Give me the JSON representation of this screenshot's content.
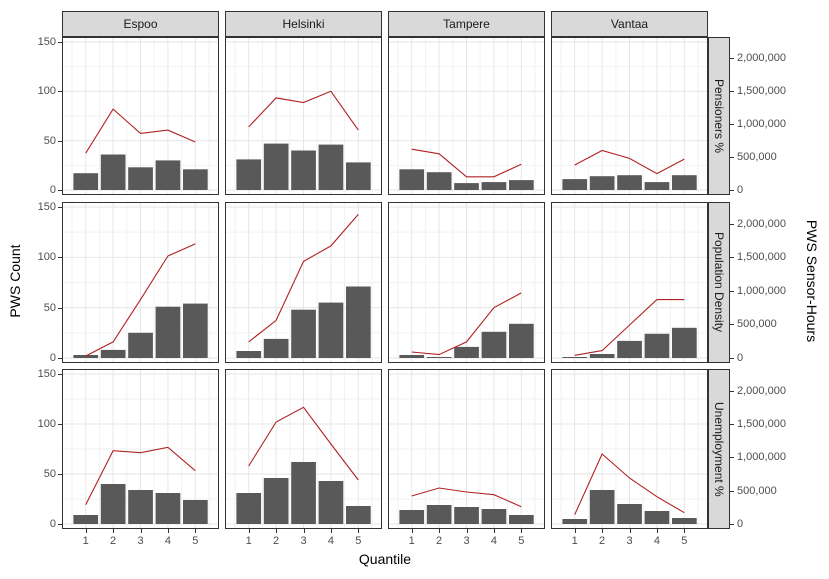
{
  "chart_data": {
    "type": "bar+line faceted grid",
    "title": "",
    "xlabel": "Quantile",
    "ylabel_left": "PWS Count",
    "ylabel_right": "PWS Sensor-Hours",
    "facet_columns": [
      "Espoo",
      "Helsinki",
      "Tampere",
      "Vantaa"
    ],
    "facet_rows": [
      "Pensioners %",
      "Population Density",
      "Unemployment %"
    ],
    "x_tick_labels": [
      "1",
      "2",
      "3",
      "4",
      "5"
    ],
    "left_axis": {
      "tick_labels": [
        "0",
        "50",
        "100",
        "150"
      ],
      "tick_values": [
        0,
        50,
        100,
        150
      ],
      "range": [
        0,
        150
      ]
    },
    "right_axis": {
      "tick_labels": [
        "0",
        "500,000",
        "1,000,000",
        "1,500,000",
        "2,000,000"
      ],
      "tick_values": [
        0,
        500000,
        1000000,
        1500000,
        2000000
      ],
      "left_units_per_right_unit": 15000
    },
    "grid": true,
    "legend": "none",
    "bar_series": "PWS Count (bars, left axis)",
    "line_series": "PWS Sensor-Hours (red line, right axis)",
    "panels": [
      {
        "row": "Pensioners %",
        "col": "Espoo",
        "bars": [
          17,
          36,
          23,
          30,
          21
        ],
        "line": [
          560000,
          1230000,
          860000,
          910000,
          730000
        ]
      },
      {
        "row": "Pensioners %",
        "col": "Helsinki",
        "bars": [
          31,
          47,
          40,
          46,
          28
        ],
        "line": [
          960000,
          1400000,
          1330000,
          1500000,
          910000
        ]
      },
      {
        "row": "Pensioners %",
        "col": "Tampere",
        "bars": [
          21,
          18,
          7,
          8,
          10
        ],
        "line": [
          620000,
          550000,
          200000,
          200000,
          390000
        ]
      },
      {
        "row": "Pensioners %",
        "col": "Vantaa",
        "bars": [
          11,
          14,
          15,
          8,
          15
        ],
        "line": [
          380000,
          600000,
          480000,
          250000,
          470000
        ]
      },
      {
        "row": "Population Density",
        "col": "Espoo",
        "bars": [
          3,
          8,
          25,
          51,
          54
        ],
        "line": [
          30000,
          240000,
          870000,
          1520000,
          1700000
        ]
      },
      {
        "row": "Population Density",
        "col": "Helsinki",
        "bars": [
          7,
          19,
          48,
          55,
          71
        ],
        "line": [
          240000,
          560000,
          1440000,
          1670000,
          2140000
        ]
      },
      {
        "row": "Population Density",
        "col": "Tampere",
        "bars": [
          3,
          1,
          11,
          26,
          34
        ],
        "line": [
          90000,
          50000,
          240000,
          750000,
          970000
        ]
      },
      {
        "row": "Population Density",
        "col": "Vantaa",
        "bars": [
          1,
          4,
          17,
          24,
          30
        ],
        "line": [
          40000,
          110000,
          490000,
          870000,
          870000
        ]
      },
      {
        "row": "Unemployment %",
        "col": "Espoo",
        "bars": [
          9,
          40,
          34,
          31,
          24
        ],
        "line": [
          290000,
          1100000,
          1070000,
          1150000,
          800000
        ]
      },
      {
        "row": "Unemployment %",
        "col": "Helsinki",
        "bars": [
          31,
          46,
          62,
          43,
          18
        ],
        "line": [
          870000,
          1530000,
          1750000,
          1200000,
          660000
        ]
      },
      {
        "row": "Unemployment %",
        "col": "Tampere",
        "bars": [
          14,
          19,
          17,
          15,
          9
        ],
        "line": [
          420000,
          540000,
          480000,
          440000,
          260000
        ]
      },
      {
        "row": "Unemployment %",
        "col": "Vantaa",
        "bars": [
          5,
          34,
          20,
          13,
          6
        ],
        "line": [
          140000,
          1050000,
          690000,
          410000,
          170000
        ]
      }
    ],
    "colors": {
      "bar": "#595959",
      "line": "#b22222",
      "strip_fill": "#d9d9d9",
      "panel_border": "#333333",
      "grid_major": "#e6e6e6",
      "grid_minor": "#f2f2f2",
      "tick_text": "#4d4d4d",
      "title_text": "#000000",
      "background": "#ffffff"
    }
  }
}
